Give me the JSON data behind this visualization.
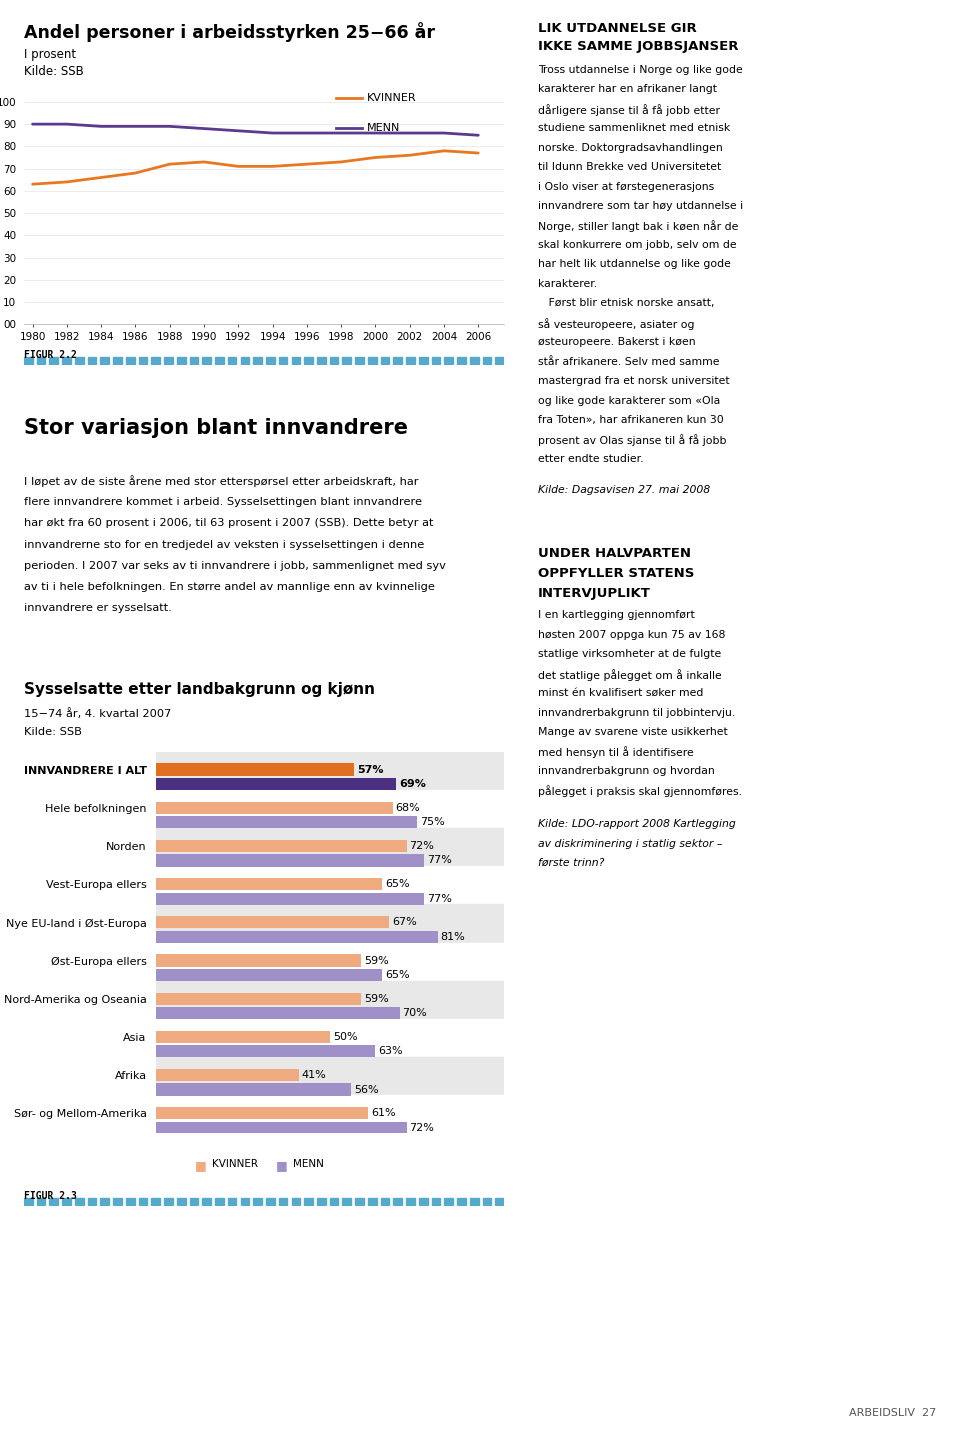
{
  "line_title": "Andel personer i arbeidsstyrken 25−66 år",
  "line_subtitle": "I prosent",
  "line_source": "Kilde: SSB",
  "line_years": [
    1980,
    1982,
    1984,
    1986,
    1988,
    1990,
    1992,
    1994,
    1996,
    1998,
    2000,
    2002,
    2004,
    2006
  ],
  "kvinner_data": [
    63,
    64,
    66,
    68,
    72,
    73,
    71,
    71,
    72,
    73,
    75,
    76,
    78,
    77
  ],
  "menn_data": [
    90,
    90,
    89,
    89,
    89,
    88,
    87,
    86,
    86,
    86,
    86,
    86,
    86,
    85
  ],
  "kvinner_color": "#E87722",
  "menn_color": "#5B3A8E",
  "figur22": "FIGUR 2.2",
  "bar_title": "Sysselsatte etter landbakgrunn og kjønn",
  "bar_subtitle1": "15−74 år, 4. kvartal 2007",
  "bar_subtitle2": "Kilde: SSB",
  "figur23": "FIGUR 2.3",
  "categories": [
    "INNVANDRERE I ALT",
    "Hele befolkningen",
    "Norden",
    "Vest-Europa ellers",
    "Nye EU-land i Øst-Europa",
    "Øst-Europa ellers",
    "Nord-Amerika og Oseania",
    "Asia",
    "Afrika",
    "Sør- og Mellom-Amerika"
  ],
  "kvinner_bar": [
    57,
    68,
    72,
    65,
    67,
    59,
    59,
    50,
    41,
    61
  ],
  "menn_bar": [
    69,
    75,
    77,
    77,
    81,
    65,
    70,
    63,
    56,
    72
  ],
  "bar_kvinner_color_innv": "#E07020",
  "bar_menn_color_innv": "#4A3080",
  "bar_kvinner_color": "#F0AA80",
  "bar_menn_color": "#A090C8",
  "bg_color_odd": "#E8E8E8",
  "bg_color_even": "#FFFFFF",
  "legend_kvinner": "KVINNER",
  "legend_menn": "MENN",
  "article_title": "Stor variasjon blant innvandrere",
  "article_body_lines": [
    "I løpet av de siste årene med stor etterspørsel etter arbeidskraft, har",
    "flere innvandrere kommet i arbeid. Sysselsettingen blant innvandrere",
    "har økt fra 60 prosent i 2006, til 63 prosent i 2007 (SSB). Dette betyr at",
    "innvandrerne sto for en tredjedel av veksten i sysselsettingen i denne",
    "perioden. I 2007 var seks av ti innvandrere i jobb, sammenlignet med syv",
    "av ti i hele befolkningen. En større andel av mannlige enn av kvinnelige",
    "innvandrere er sysselsatt."
  ],
  "sidebar_title1": "LIK UTDANNELSE GIR",
  "sidebar_title2": "IKKE SAMME JOBBSJANSER",
  "sidebar_body_lines": [
    "Tross utdannelse i Norge og like gode",
    "karakterer har en afrikaner langt",
    "dårligere sjanse til å få jobb etter",
    "studiene sammenliknet med etnisk",
    "norske. Doktorgradsavhandlingen",
    "til Idunn Brekke ved Universitetet",
    "i Oslo viser at førstegenerasjons",
    "innvandrere som tar høy utdannelse i",
    "Norge, stiller langt bak i køen når de",
    "skal konkurrere om jobb, selv om de",
    "har helt lik utdannelse og like gode",
    "karakterer.",
    "   Først blir etnisk norske ansatt,",
    "så vesteuropeere, asiater og",
    "østeuropeere. Bakerst i køen",
    "står afrikanere. Selv med samme",
    "mastergrad fra et norsk universitet",
    "og like gode karakterer som «Ola",
    "fra Toten», har afrikaneren kun 30",
    "prosent av Olas sjanse til å få jobb",
    "etter endte studier."
  ],
  "sidebar_source": "Kilde: Dagsavisen 27. mai 2008",
  "sidebar_title3": "UNDER HALVPARTEN",
  "sidebar_title4": "OPPFYLLER STATENS",
  "sidebar_title5": "INTERVJUPLIKT",
  "sidebar_body2_lines": [
    "I en kartlegging gjennomført",
    "høsten 2007 oppga kun 75 av 168",
    "statlige virksomheter at de fulgte",
    "det statlige pålegget om å inkalle",
    "minst én kvalifisert søker med",
    "innvandrerbakgrunn til jobbintervju.",
    "Mange av svarene viste usikkerhet",
    "med hensyn til å identifisere",
    "innvandrerbakgrunn og hvordan",
    "pålegget i praksis skal gjennomføres."
  ],
  "sidebar_source2_lines": [
    "Kilde: LDO-rapport 2008 Kartlegging",
    "av diskriminering i statlig sektor –",
    "første trinn?"
  ],
  "footer": "ARBEIDSLIV  27",
  "dot_color": "#55AACC",
  "separator_color": "#BBBBBB"
}
